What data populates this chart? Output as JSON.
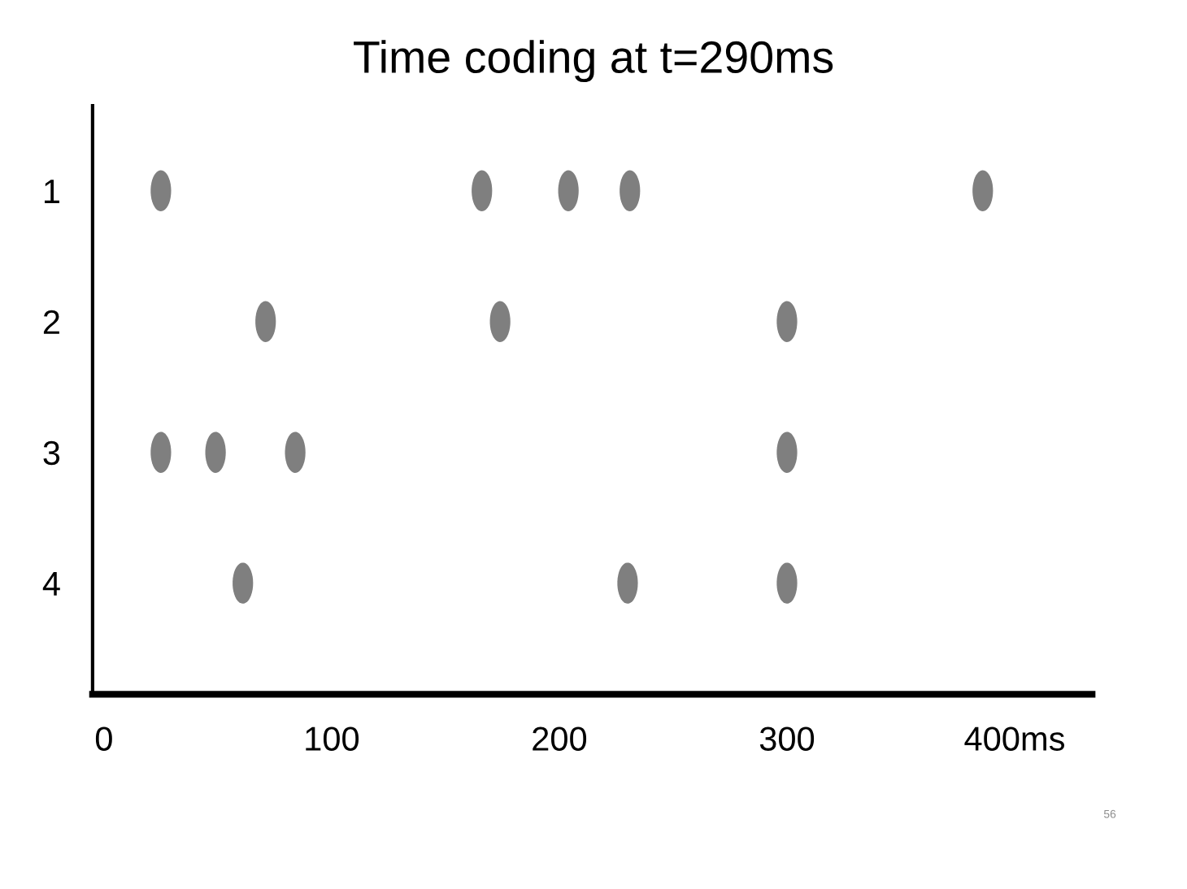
{
  "chart_data": {
    "type": "scatter",
    "title": "Time coding at t=290ms",
    "x": [
      25,
      166,
      204,
      231,
      386,
      71,
      174,
      300,
      25,
      49,
      84,
      300,
      61,
      230,
      300
    ],
    "values": [
      1,
      1,
      1,
      1,
      1,
      2,
      2,
      2,
      3,
      3,
      3,
      3,
      4,
      4,
      4
    ],
    "color": "#7f7f7f",
    "marker": "circle",
    "xlim": [
      -5,
      434
    ],
    "xticks": [
      0,
      100,
      200,
      300,
      {
        "value": 400,
        "label": "400ms"
      }
    ],
    "ylim": [
      4.85,
      0.35
    ],
    "yticks": [
      1,
      2,
      3,
      4
    ],
    "grid": false,
    "legend": false,
    "annotations": [
      "56"
    ]
  }
}
